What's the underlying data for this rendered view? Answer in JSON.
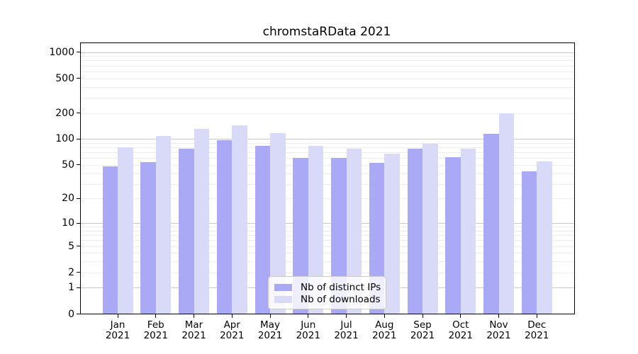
{
  "chart_data": {
    "type": "bar",
    "title": "chromstaRData 2021",
    "categories": [
      "Jan",
      "Feb",
      "Mar",
      "Apr",
      "May",
      "Jun",
      "Jul",
      "Aug",
      "Sep",
      "Oct",
      "Nov",
      "Dec"
    ],
    "category_year": "2021",
    "series": [
      {
        "name": "Nb of distinct IPs",
        "color": "#a9a9f5",
        "values": [
          48,
          54,
          78,
          97,
          84,
          60,
          60,
          53,
          78,
          62,
          114,
          42
        ]
      },
      {
        "name": "Nb of downloads",
        "color": "#d9d9f8",
        "values": [
          81,
          108,
          130,
          143,
          117,
          83,
          78,
          68,
          88,
          78,
          197,
          55
        ]
      }
    ],
    "y_ticks": [
      1000,
      500,
      200,
      100,
      50,
      20,
      10,
      5,
      2,
      1,
      0
    ],
    "yscale": "log1p",
    "ylim": [
      0,
      1300
    ],
    "grid": true,
    "legend": {
      "position": "bottom-center-inside",
      "entries": [
        "Nb of distinct IPs",
        "Nb of downloads"
      ]
    },
    "colors": {
      "axis": "#000000",
      "grid_minor": "#ededed",
      "grid_major": "#c8c8c8",
      "background": "#ffffff",
      "legend_border": "#cccccc"
    }
  }
}
